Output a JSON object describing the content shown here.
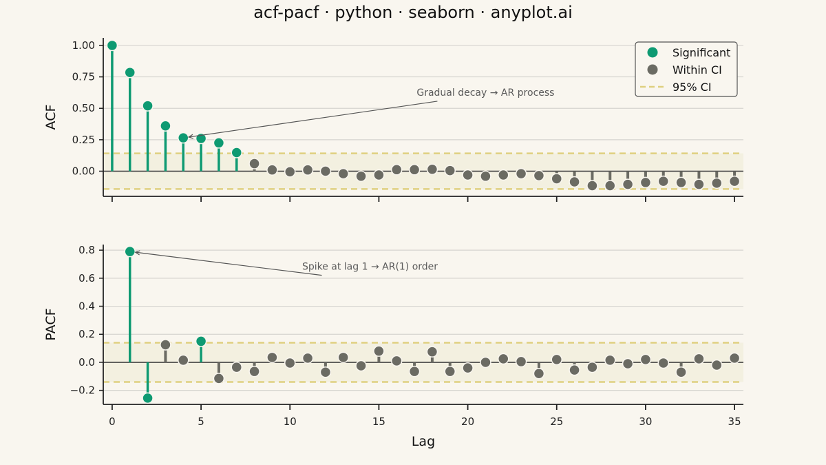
{
  "colors": {
    "significant": "#0e9a72",
    "within": "#6b6b63",
    "ci": "#dfd080",
    "ci_band": "#f3f0e0",
    "grid": "#d6d4cf",
    "axis": "#222222",
    "background": "#f9f6ef"
  },
  "chart_data": [
    {
      "type": "stem",
      "title": "acf-pacf · python · seaborn · anyplot.ai",
      "ylabel": "ACF",
      "xlabel": "",
      "ylim": [
        -0.2,
        1.06
      ],
      "xlim": [
        -0.5,
        35.5
      ],
      "yticks": [
        0.0,
        0.25,
        0.5,
        0.75,
        1.0
      ],
      "ytick_labels": [
        "0.00",
        "0.25",
        "0.50",
        "0.75",
        "1.00"
      ],
      "xticks": [
        0,
        5,
        10,
        15,
        20,
        25,
        30,
        35
      ],
      "show_xtick_labels": false,
      "ci": 0.142,
      "grid": true,
      "lags": [
        0,
        1,
        2,
        3,
        4,
        5,
        6,
        7,
        8,
        9,
        10,
        11,
        12,
        13,
        14,
        15,
        16,
        17,
        18,
        19,
        20,
        21,
        22,
        23,
        24,
        25,
        26,
        27,
        28,
        29,
        30,
        31,
        32,
        33,
        34,
        35
      ],
      "values": [
        1.0,
        0.785,
        0.52,
        0.36,
        0.265,
        0.26,
        0.225,
        0.148,
        0.06,
        0.01,
        -0.005,
        0.01,
        0.0,
        -0.02,
        -0.04,
        -0.03,
        0.012,
        0.012,
        0.015,
        0.005,
        -0.03,
        -0.04,
        -0.03,
        -0.02,
        -0.035,
        -0.06,
        -0.085,
        -0.115,
        -0.115,
        -0.105,
        -0.09,
        -0.08,
        -0.09,
        -0.105,
        -0.095,
        -0.08
      ],
      "annotation": {
        "text": "Gradual decay → AR process",
        "target_lag": 4,
        "text_x": 21.0,
        "text_y": 0.6
      },
      "legend": {
        "placement": "top-right",
        "entries": [
          {
            "label": "Significant",
            "kind": "significant"
          },
          {
            "label": "Within CI",
            "kind": "within"
          },
          {
            "label": "95% CI",
            "kind": "ci"
          }
        ]
      }
    },
    {
      "type": "stem",
      "ylabel": "PACF",
      "xlabel": "Lag",
      "ylim": [
        -0.3,
        0.84
      ],
      "xlim": [
        -0.5,
        35.5
      ],
      "yticks": [
        -0.2,
        0.0,
        0.2,
        0.4,
        0.6,
        0.8
      ],
      "ytick_labels": [
        "−0.2",
        "0.0",
        "0.2",
        "0.4",
        "0.6",
        "0.8"
      ],
      "xticks": [
        0,
        5,
        10,
        15,
        20,
        25,
        30,
        35
      ],
      "xtick_labels": [
        "0",
        "5",
        "10",
        "15",
        "20",
        "25",
        "30",
        "35"
      ],
      "show_xtick_labels": true,
      "ci": 0.14,
      "grid": true,
      "lags": [
        1,
        2,
        3,
        4,
        5,
        6,
        7,
        8,
        9,
        10,
        11,
        12,
        13,
        14,
        15,
        16,
        17,
        18,
        19,
        20,
        21,
        22,
        23,
        24,
        25,
        26,
        27,
        28,
        29,
        30,
        31,
        32,
        33,
        34,
        35
      ],
      "values": [
        0.79,
        -0.255,
        0.125,
        0.015,
        0.15,
        -0.115,
        -0.035,
        -0.065,
        0.035,
        -0.005,
        0.03,
        -0.07,
        0.035,
        -0.025,
        0.08,
        0.01,
        -0.065,
        0.075,
        -0.065,
        -0.04,
        0.0,
        0.025,
        0.005,
        -0.08,
        0.02,
        -0.055,
        -0.035,
        0.015,
        -0.01,
        0.02,
        -0.005,
        -0.07,
        0.025,
        -0.02,
        0.03
      ],
      "annotation": {
        "text": "Spike at lag 1 → AR(1) order",
        "target_lag": 1,
        "text_x": 14.5,
        "text_y": 0.66
      }
    }
  ]
}
